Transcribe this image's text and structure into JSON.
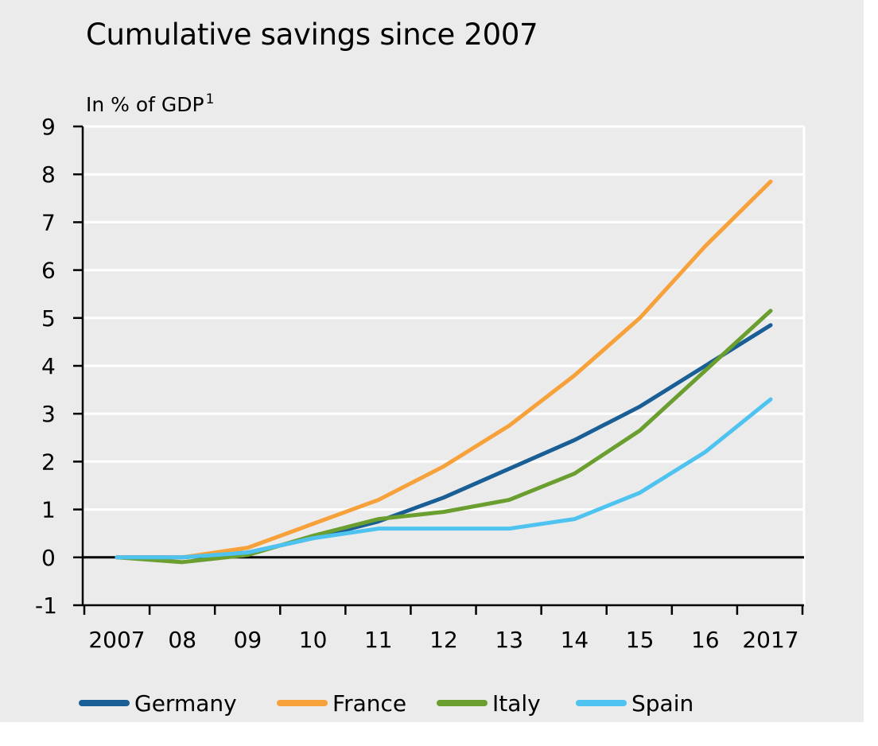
{
  "chart_data": {
    "type": "line",
    "title": "Cumulative savings since 2007",
    "ylabel": "In % of GDP",
    "ylabel_superscript": "1",
    "xlabel": "",
    "x_tick_labels": [
      "2007",
      "08",
      "09",
      "10",
      "11",
      "12",
      "13",
      "14",
      "15",
      "16",
      "2017"
    ],
    "y_tick_labels": [
      "-1",
      "0",
      "1",
      "2",
      "3",
      "4",
      "5",
      "6",
      "7",
      "8",
      "9"
    ],
    "ylim": [
      -1,
      9
    ],
    "grid": "horizontal",
    "legend_position": "bottom",
    "x": [
      2007,
      2008,
      2009,
      2010,
      2011,
      2012,
      2013,
      2014,
      2015,
      2016,
      2017
    ],
    "series": [
      {
        "name": "Germany",
        "color": "#1a5e96",
        "values": [
          0.0,
          0.0,
          0.1,
          0.4,
          0.75,
          1.25,
          1.85,
          2.45,
          3.15,
          4.0,
          4.85
        ]
      },
      {
        "name": "France",
        "color": "#f7a13b",
        "values": [
          0.0,
          0.0,
          0.2,
          0.7,
          1.2,
          1.9,
          2.75,
          3.8,
          5.0,
          6.5,
          7.85
        ]
      },
      {
        "name": "Italy",
        "color": "#6a9e2e",
        "values": [
          0.0,
          -0.1,
          0.05,
          0.45,
          0.8,
          0.95,
          1.2,
          1.75,
          2.65,
          3.9,
          5.15
        ]
      },
      {
        "name": "Spain",
        "color": "#4fc3f0",
        "values": [
          0.0,
          0.0,
          0.1,
          0.4,
          0.6,
          0.6,
          0.6,
          0.8,
          1.35,
          2.2,
          3.3
        ]
      }
    ]
  }
}
